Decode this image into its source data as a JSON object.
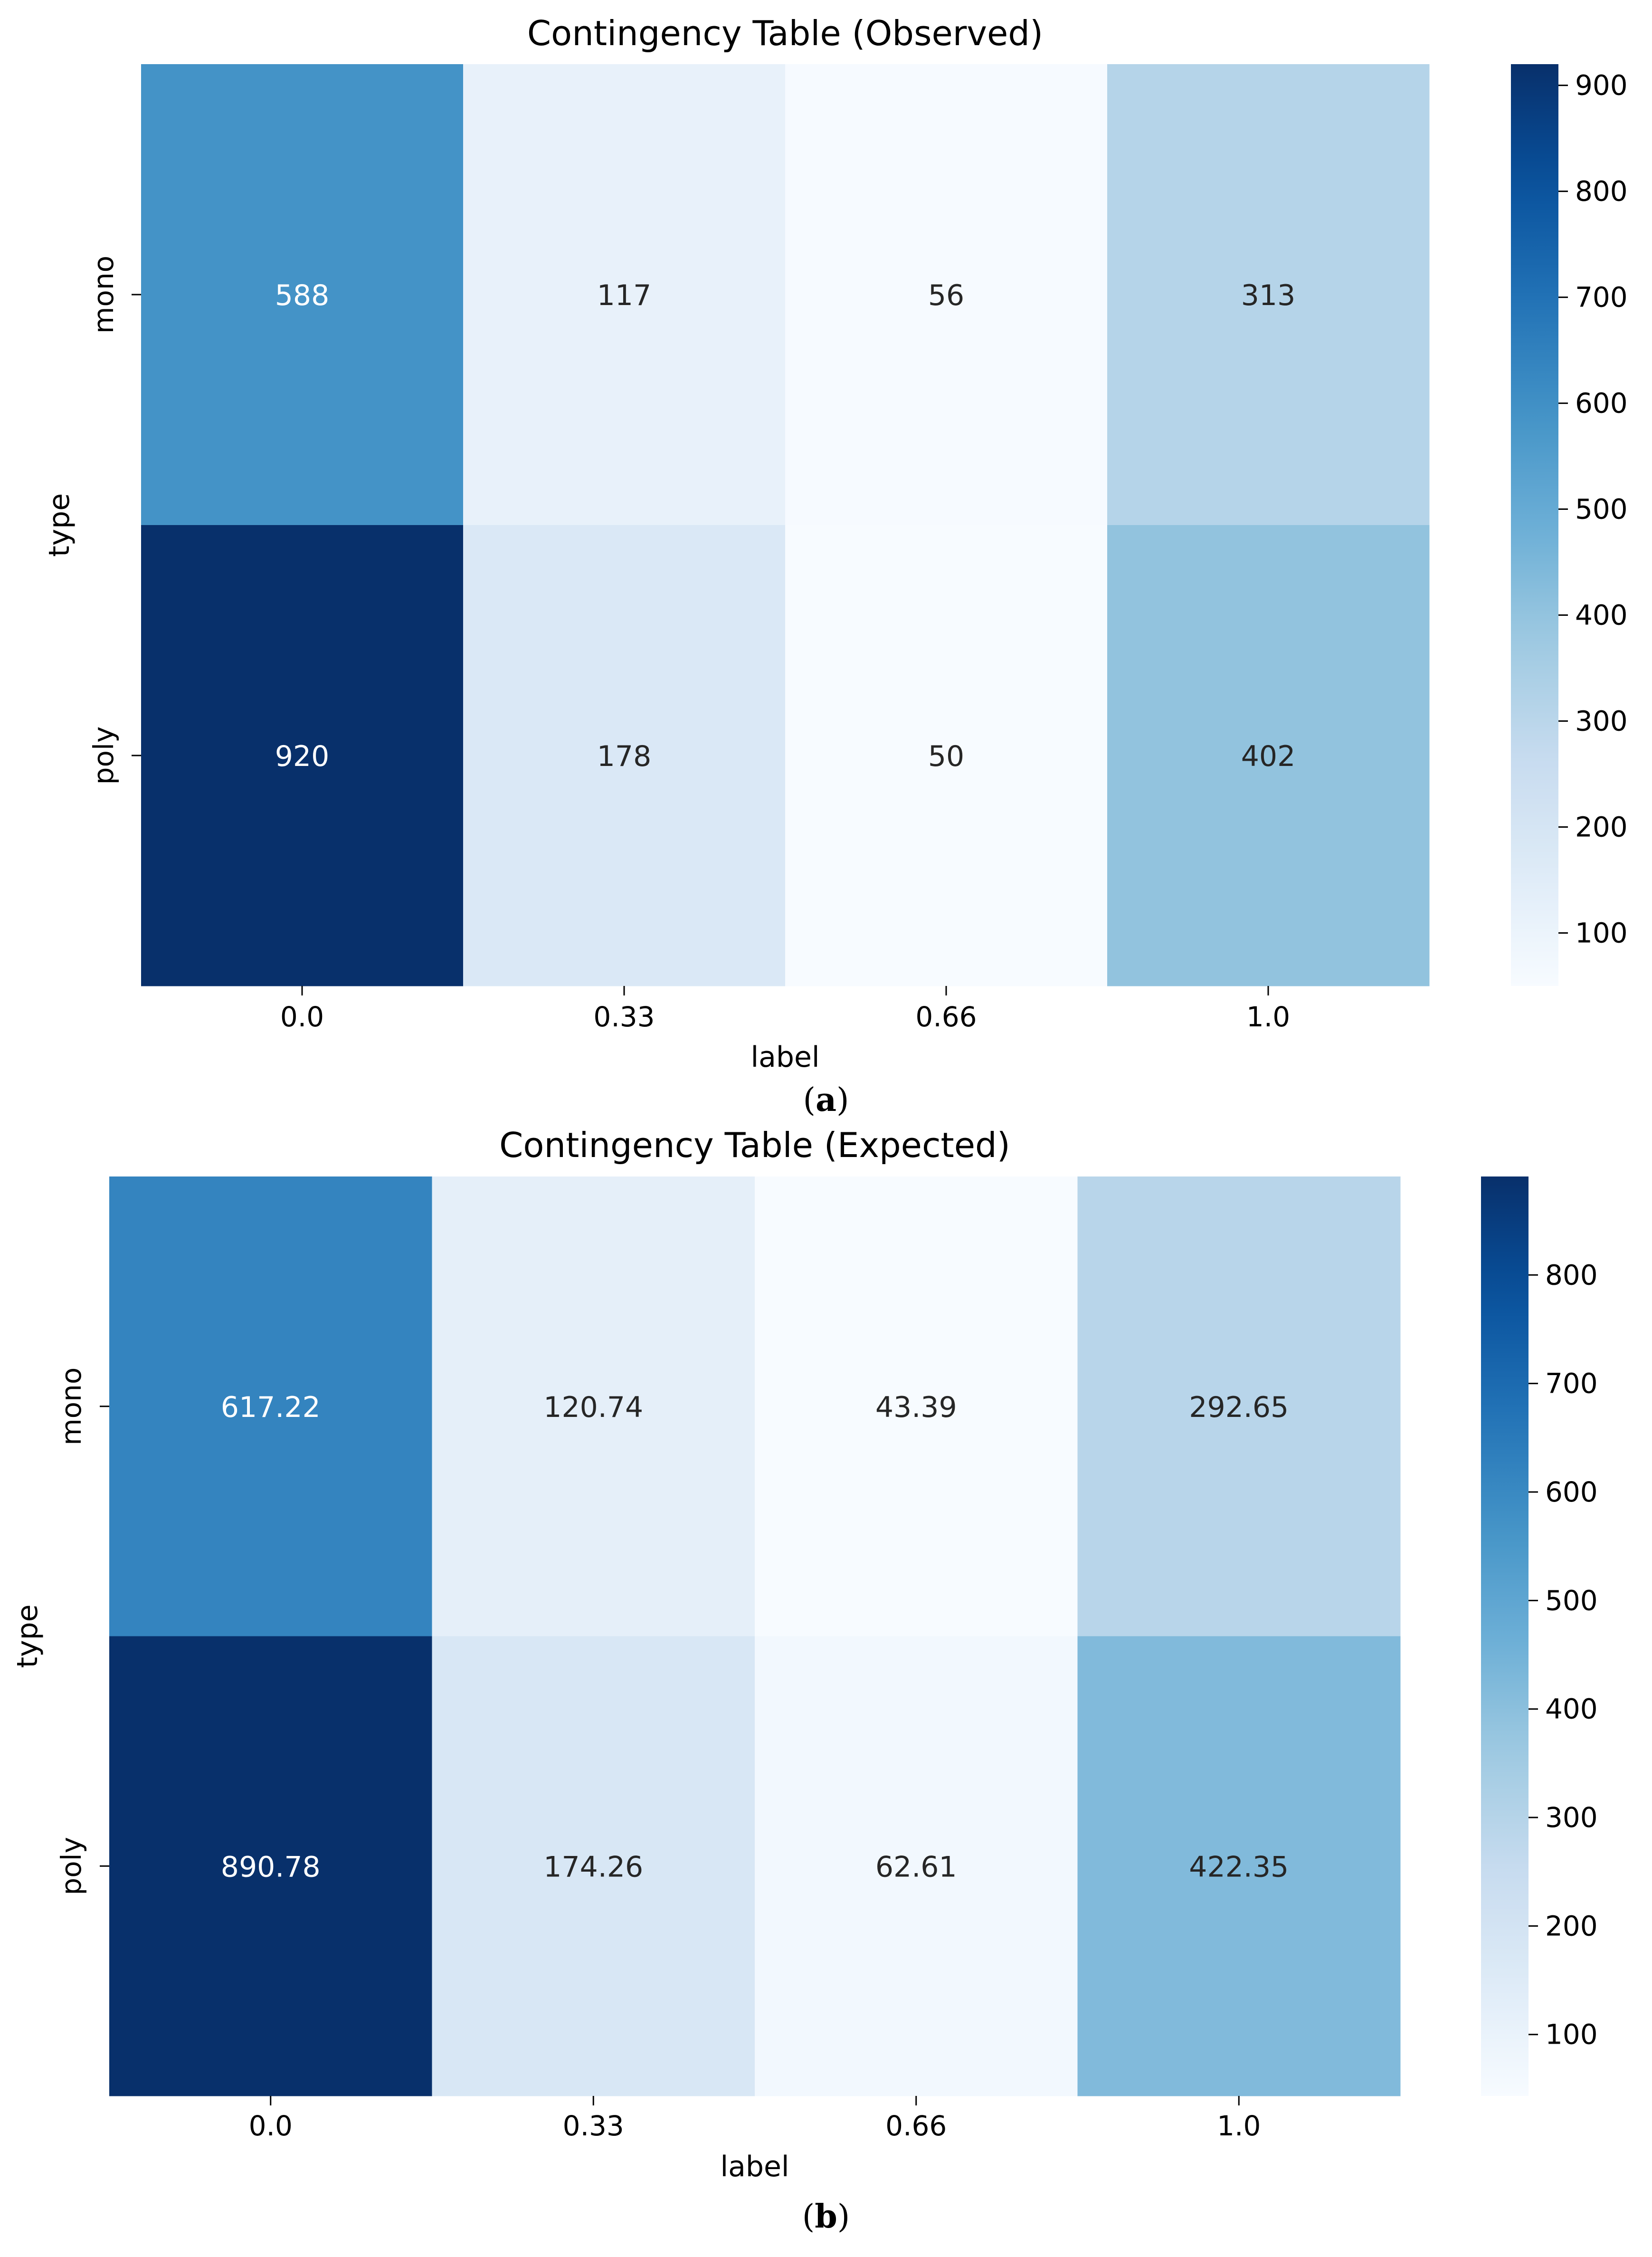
{
  "chart_data": [
    {
      "type": "heatmap",
      "title": "Contingency Table (Observed)",
      "panel_label": "a",
      "xlabel": "label",
      "ylabel": "type",
      "x_categories": [
        "0.0",
        "0.33",
        "0.66",
        "1.0"
      ],
      "y_categories": [
        "mono",
        "poly"
      ],
      "values": [
        [
          588,
          117,
          56,
          313
        ],
        [
          920,
          178,
          50,
          402
        ]
      ],
      "cell_labels": [
        [
          "588",
          "117",
          "56",
          "313"
        ],
        [
          "920",
          "178",
          "50",
          "402"
        ]
      ],
      "colormap": "Blues",
      "vmin": 50,
      "vmax": 920,
      "colorbar_ticks": [
        100,
        200,
        300,
        400,
        500,
        600,
        700,
        800,
        900
      ]
    },
    {
      "type": "heatmap",
      "title": "Contingency Table (Expected)",
      "panel_label": "b",
      "xlabel": "label",
      "ylabel": "type",
      "x_categories": [
        "0.0",
        "0.33",
        "0.66",
        "1.0"
      ],
      "y_categories": [
        "mono",
        "poly"
      ],
      "values": [
        [
          617.22,
          120.74,
          43.39,
          292.65
        ],
        [
          890.78,
          174.26,
          62.61,
          422.35
        ]
      ],
      "cell_labels": [
        [
          "617.22",
          "120.74",
          "43.39",
          "292.65"
        ],
        [
          "890.78",
          "174.26",
          "62.61",
          "422.35"
        ]
      ],
      "colormap": "Blues",
      "vmin": 43.39,
      "vmax": 890.78,
      "colorbar_ticks": [
        100,
        200,
        300,
        400,
        500,
        600,
        700,
        800
      ]
    }
  ]
}
